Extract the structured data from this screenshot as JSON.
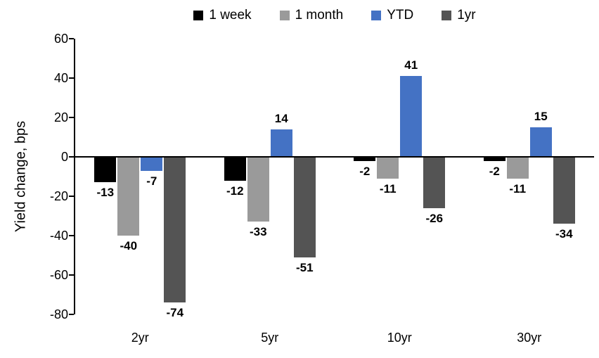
{
  "chart_data": {
    "type": "bar",
    "title": "",
    "xlabel": "",
    "ylabel": "Yield change, bps",
    "categories": [
      "2yr",
      "5yr",
      "10yr",
      "30yr"
    ],
    "series": [
      {
        "name": "1 week",
        "color": "#000000",
        "values": [
          -13,
          -12,
          -2,
          -2
        ]
      },
      {
        "name": "1 month",
        "color": "#9A9A9A",
        "values": [
          -40,
          -33,
          -11,
          -11
        ]
      },
      {
        "name": "YTD",
        "color": "#4472C4",
        "values": [
          -7,
          14,
          41,
          15
        ]
      },
      {
        "name": "1yr",
        "color": "#545454",
        "values": [
          -74,
          -51,
          -26,
          -34
        ]
      }
    ],
    "ylim": [
      -80,
      60
    ],
    "yticks": [
      60,
      40,
      20,
      0,
      -20,
      -40,
      -60,
      -80
    ],
    "grid": false,
    "legend_position": "top",
    "data_labels": true,
    "axis_color": "#000000"
  }
}
